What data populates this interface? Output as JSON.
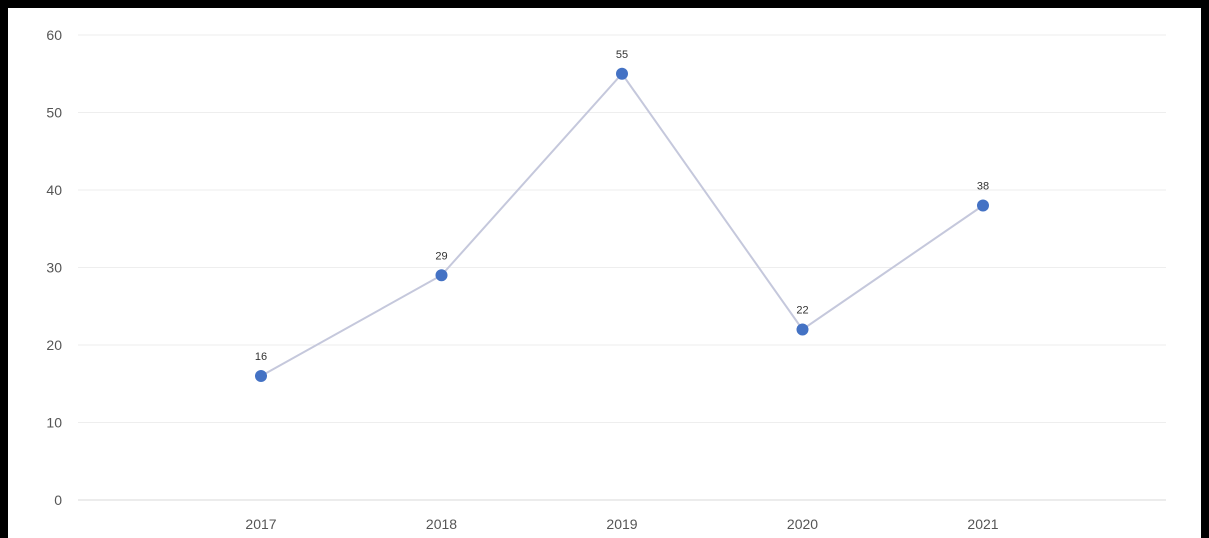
{
  "chart_data": {
    "type": "line",
    "categories": [
      "2017",
      "2018",
      "2019",
      "2020",
      "2021"
    ],
    "series": [
      {
        "values": [
          16,
          29,
          55,
          22,
          38
        ]
      }
    ],
    "y_ticks": [
      "0",
      "10",
      "20",
      "30",
      "40",
      "50",
      "60"
    ],
    "ylim": [
      0,
      60
    ],
    "grid": true,
    "line_color": "#c5c8dc",
    "marker_color": "#4472c4",
    "grid_color": "#eeeeee"
  }
}
